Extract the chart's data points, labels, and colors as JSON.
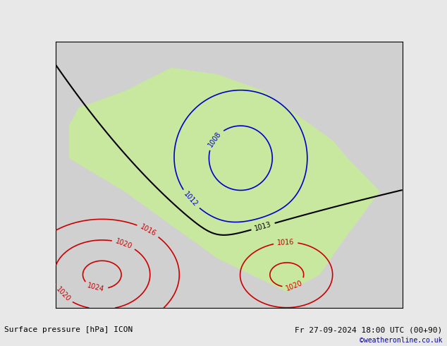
{
  "title_left": "Surface pressure [hPa] ICON",
  "title_right": "Fr 27-09-2024 18:00 UTC (00+90)",
  "copyright": "©weatheronline.co.uk",
  "fig_width": 6.34,
  "fig_height": 4.9,
  "dpi": 100,
  "bg_color": "#e8e8e8",
  "land_color": "#c8e8a0",
  "ocean_color": "#d8d8d8",
  "contour_black_color": "#000000",
  "contour_blue_color": "#0000cc",
  "contour_red_color": "#cc0000",
  "label_black": "#000000",
  "label_blue": "#0000cc",
  "label_red": "#cc0000",
  "bottom_text_color": "#000000",
  "copyright_color": "#0000aa",
  "font_size_title": 9,
  "font_size_labels": 7,
  "font_size_bottom": 8
}
